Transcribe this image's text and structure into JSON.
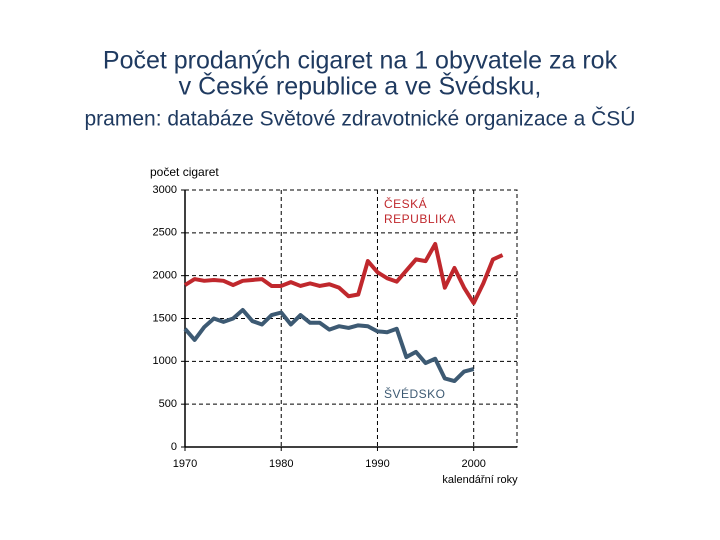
{
  "chart_data": {
    "type": "line",
    "title": [
      "Počet prodaných cigaret na 1 obyvatele za rok",
      "v České republice a ve Švédsku,"
    ],
    "subtitle": "pramen: databáze Světové zdravotnické organizace a ČSÚ",
    "y_label": "počet cigaret",
    "x_label": "kalendářní roky",
    "x": [
      1970,
      1971,
      1972,
      1973,
      1974,
      1975,
      1976,
      1977,
      1978,
      1979,
      1980,
      1981,
      1982,
      1983,
      1984,
      1985,
      1986,
      1987,
      1988,
      1989,
      1990,
      1991,
      1992,
      1993,
      1994,
      1995,
      1996,
      1997,
      1998,
      1999,
      2000,
      2001,
      2002,
      2003,
      2004
    ],
    "series": [
      {
        "name": "ČESKÁ REPUBLIKA",
        "color": "#c0282d",
        "values": [
          1890,
          1960,
          1940,
          1950,
          1940,
          1890,
          1940,
          1950,
          1960,
          1880,
          1880,
          1925,
          1880,
          1910,
          1880,
          1900,
          1860,
          1760,
          1780,
          2170,
          2040,
          1970,
          1930,
          2060,
          2190,
          2170,
          2370,
          1860,
          2090,
          1860,
          1680,
          1910,
          2190,
          2240,
          null
        ]
      },
      {
        "name": "ŠVÉDSKO",
        "color": "#3d5a73",
        "values": [
          1380,
          1250,
          1400,
          1500,
          1460,
          1500,
          1600,
          1470,
          1430,
          1540,
          1570,
          1430,
          1540,
          1450,
          1450,
          1370,
          1410,
          1390,
          1420,
          1410,
          1350,
          1340,
          1380,
          1050,
          1110,
          980,
          1030,
          800,
          770,
          880,
          910,
          null,
          null,
          null,
          null
        ]
      }
    ],
    "xlim": [
      1970,
      2004.5
    ],
    "ylim": [
      0,
      3000
    ],
    "xticks": [
      1970,
      1980,
      1990,
      2000
    ],
    "yticks": [
      0,
      500,
      1000,
      1500,
      2000,
      2500,
      3000
    ],
    "grid": true
  }
}
